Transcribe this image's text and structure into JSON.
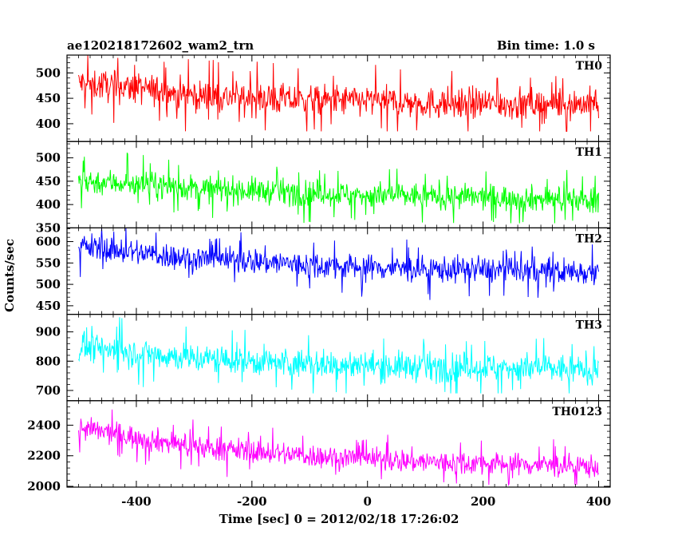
{
  "header": {
    "left": "ae120218172602_wam2_trn",
    "right": "Bin time: 1.0 s"
  },
  "chart_data": {
    "type": "line",
    "title": "ae120218172602_wam2_trn",
    "subtitle": "Bin time: 1.0 s",
    "xlabel": "Time [sec] 0 = 2012/02/18 17:26:02",
    "ylabel": "Counts/sec",
    "xlim": [
      -520,
      420
    ],
    "x_range": [
      -500,
      400
    ],
    "x_ticks": [
      -400,
      -200,
      0,
      200,
      400
    ],
    "grid": false,
    "legend": "none",
    "panels": [
      {
        "name": "TH0",
        "color": "#ff0000",
        "ylim": [
          365,
          535
        ],
        "y_ticks": [
          400,
          450,
          500
        ],
        "trend": [
          [
            -500,
            480
          ],
          [
            -400,
            470
          ],
          [
            -300,
            455
          ],
          [
            -200,
            450
          ],
          [
            -100,
            445
          ],
          [
            0,
            445
          ],
          [
            100,
            440
          ],
          [
            200,
            440
          ],
          [
            300,
            438
          ],
          [
            400,
            440
          ]
        ],
        "noise_amp": 28,
        "spike_min": 385,
        "spike_max": 535
      },
      {
        "name": "TH1",
        "color": "#00ff00",
        "ylim": [
          350,
          535
        ],
        "y_ticks": [
          350,
          400,
          450,
          500
        ],
        "trend": [
          [
            -500,
            450
          ],
          [
            -400,
            445
          ],
          [
            -300,
            435
          ],
          [
            -200,
            430
          ],
          [
            -100,
            425
          ],
          [
            0,
            420
          ],
          [
            100,
            418
          ],
          [
            200,
            415
          ],
          [
            300,
            412
          ],
          [
            400,
            410
          ]
        ],
        "noise_amp": 25,
        "spike_min": 360,
        "spike_max": 535
      },
      {
        "name": "TH2",
        "color": "#0000ff",
        "ylim": [
          430,
          632
        ],
        "y_ticks": [
          450,
          500,
          550,
          600
        ],
        "trend": [
          [
            -500,
            590
          ],
          [
            -400,
            575
          ],
          [
            -300,
            560
          ],
          [
            -200,
            555
          ],
          [
            -100,
            545
          ],
          [
            0,
            540
          ],
          [
            100,
            535
          ],
          [
            200,
            535
          ],
          [
            300,
            530
          ],
          [
            400,
            530
          ]
        ],
        "noise_amp": 28,
        "spike_min": 462,
        "spike_max": 632
      },
      {
        "name": "TH3",
        "color": "#00ffff",
        "ylim": [
          665,
          960
        ],
        "y_ticks": [
          700,
          800,
          900
        ],
        "trend": [
          [
            -500,
            850
          ],
          [
            -400,
            830
          ],
          [
            -300,
            810
          ],
          [
            -200,
            800
          ],
          [
            -100,
            790
          ],
          [
            0,
            785
          ],
          [
            100,
            780
          ],
          [
            200,
            780
          ],
          [
            300,
            775
          ],
          [
            400,
            770
          ]
        ],
        "noise_amp": 45,
        "spike_min": 690,
        "spike_max": 960
      },
      {
        "name": "TH0123",
        "color": "#ff00ff",
        "ylim": [
          1995,
          2560
        ],
        "y_ticks": [
          2000,
          2200,
          2400
        ],
        "trend": [
          [
            -500,
            2380
          ],
          [
            -400,
            2320
          ],
          [
            -300,
            2260
          ],
          [
            -200,
            2230
          ],
          [
            -100,
            2200
          ],
          [
            0,
            2180
          ],
          [
            100,
            2160
          ],
          [
            200,
            2150
          ],
          [
            300,
            2140
          ],
          [
            400,
            2130
          ]
        ],
        "noise_amp": 70,
        "spike_min": 2010,
        "spike_max": 2540
      }
    ]
  }
}
